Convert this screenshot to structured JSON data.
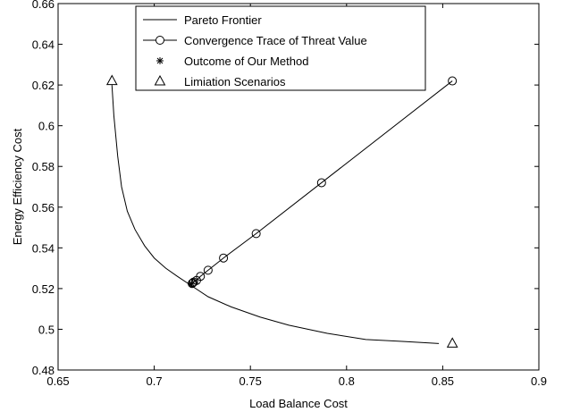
{
  "chart_data": {
    "type": "line",
    "title": "",
    "xlabel": "Load Balance Cost",
    "ylabel": "Energy Efficiency Cost",
    "xlim": [
      0.65,
      0.9
    ],
    "ylim": [
      0.48,
      0.66
    ],
    "xticks": [
      0.65,
      0.7,
      0.75,
      0.8,
      0.85,
      0.9
    ],
    "yticks": [
      0.48,
      0.5,
      0.52,
      0.54,
      0.56,
      0.58,
      0.6,
      0.62,
      0.64,
      0.66
    ],
    "xtick_labels": [
      "0.65",
      "0.7",
      "0.75",
      "0.8",
      "0.85",
      "0.9"
    ],
    "ytick_labels": [
      "0.48",
      "0.5",
      "0.52",
      "0.54",
      "0.56",
      "0.58",
      "0.6",
      "0.62",
      "0.64",
      "0.66"
    ],
    "grid": false,
    "legend_position": "top-center",
    "series": [
      {
        "name": "Pareto Frontier",
        "marker": "none",
        "x": [
          0.678,
          0.679,
          0.681,
          0.683,
          0.686,
          0.69,
          0.695,
          0.7,
          0.706,
          0.712,
          0.72,
          0.728,
          0.74,
          0.755,
          0.77,
          0.79,
          0.81,
          0.83,
          0.848
        ],
        "y": [
          0.62,
          0.605,
          0.585,
          0.57,
          0.558,
          0.549,
          0.541,
          0.535,
          0.53,
          0.526,
          0.521,
          0.516,
          0.511,
          0.506,
          0.502,
          0.498,
          0.495,
          0.494,
          0.493
        ]
      },
      {
        "name": "Convergence Trace of Threat Value",
        "marker": "circle",
        "x": [
          0.855,
          0.787,
          0.753,
          0.736,
          0.728,
          0.724,
          0.722,
          0.7205,
          0.72,
          0.7197
        ],
        "y": [
          0.622,
          0.572,
          0.547,
          0.535,
          0.529,
          0.526,
          0.524,
          0.5232,
          0.5228,
          0.5225
        ]
      },
      {
        "name": "Outcome of Our Method",
        "marker": "star",
        "x": [
          0.7195
        ],
        "y": [
          0.5225
        ]
      },
      {
        "name": "Limiation Scenarios",
        "marker": "triangle",
        "x": [
          0.678,
          0.855
        ],
        "y": [
          0.622,
          0.493
        ]
      }
    ]
  }
}
